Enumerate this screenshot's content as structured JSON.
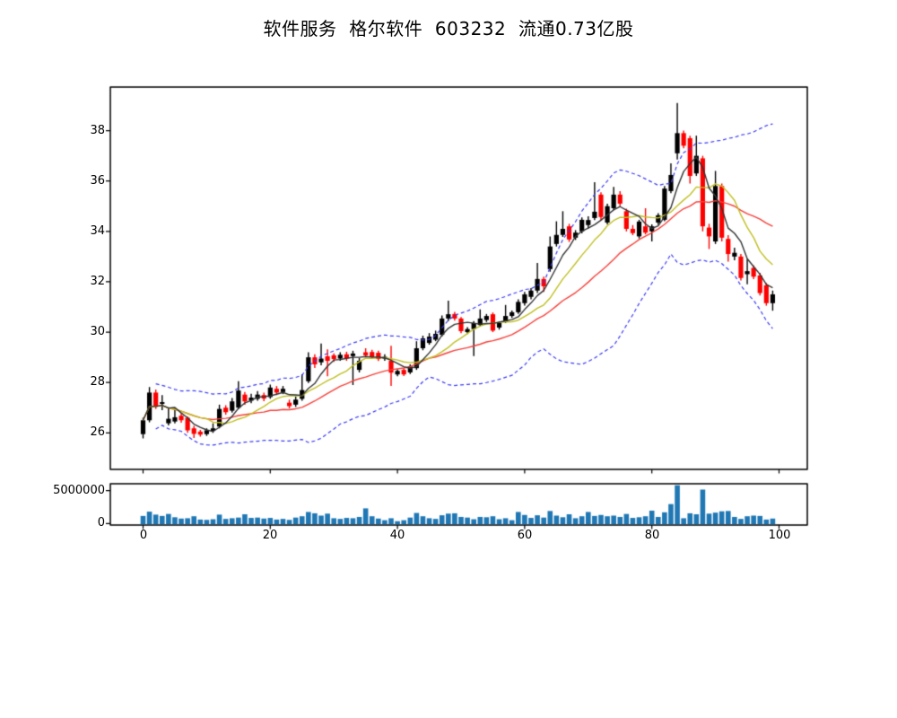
{
  "title": "软件服务  格尔软件  603232  流通0.73亿股",
  "stock": {
    "sector": "软件服务",
    "name": "格尔软件",
    "code": "603232",
    "float_shares": "流通0.73亿股"
  },
  "chart_data": {
    "type": "candlestick+volume",
    "title": "软件服务  格尔软件  603232  流通0.73亿股",
    "x_range": [
      0,
      99
    ],
    "axes": {
      "price": {
        "ylim": [
          24.55,
          39.73
        ],
        "ticks": [
          "38",
          "36",
          "34",
          "32",
          "30",
          "28",
          "26"
        ],
        "tick_values": [
          38,
          36,
          34,
          32,
          30,
          28,
          26
        ]
      },
      "volume": {
        "ticks": [
          "5000000",
          "0"
        ],
        "tick_values": [
          5000000,
          0
        ]
      },
      "x": {
        "ticks": [
          "0",
          "20",
          "40",
          "60",
          "80",
          "100"
        ],
        "tick_values": [
          0,
          20,
          40,
          60,
          80,
          100
        ]
      }
    },
    "overlays": {
      "ma": [
        {
          "period": 5,
          "color": "#333333"
        },
        {
          "period": 10,
          "color": "#bfbf22"
        },
        {
          "period": 20,
          "color": "#f4403a"
        }
      ],
      "bollinger": {
        "period": 20,
        "mult": 2,
        "color": "#3a3af2",
        "style": "dashed"
      }
    },
    "colors": {
      "up": "#000000",
      "down": "#fd0000",
      "volume_bar": "#1f77b4",
      "frame": "#000000"
    },
    "candles": [
      [
        25.95,
        26.6,
        25.78,
        26.5
      ],
      [
        26.5,
        27.82,
        26.42,
        27.6
      ],
      [
        27.6,
        27.72,
        26.95,
        27.05
      ],
      [
        27.15,
        27.5,
        26.9,
        27.22
      ],
      [
        26.38,
        27.0,
        26.3,
        26.56
      ],
      [
        26.45,
        26.96,
        26.38,
        26.62
      ],
      [
        26.68,
        26.78,
        26.4,
        26.5
      ],
      [
        26.6,
        26.65,
        26.0,
        26.1
      ],
      [
        26.18,
        26.28,
        25.8,
        25.96
      ],
      [
        26.05,
        26.12,
        25.85,
        25.93
      ],
      [
        25.95,
        26.18,
        25.88,
        26.1
      ],
      [
        26.08,
        26.38,
        26.0,
        26.18
      ],
      [
        26.25,
        27.12,
        26.18,
        26.95
      ],
      [
        27.0,
        27.1,
        26.72,
        26.82
      ],
      [
        26.88,
        27.38,
        26.8,
        27.25
      ],
      [
        27.0,
        28.05,
        26.95,
        27.68
      ],
      [
        27.52,
        27.62,
        27.12,
        27.25
      ],
      [
        27.28,
        27.55,
        27.18,
        27.4
      ],
      [
        27.35,
        27.66,
        27.28,
        27.52
      ],
      [
        27.5,
        27.6,
        27.26,
        27.36
      ],
      [
        27.42,
        27.92,
        27.36,
        27.8
      ],
      [
        27.75,
        27.86,
        27.5,
        27.6
      ],
      [
        27.62,
        27.86,
        27.54,
        27.75
      ],
      [
        27.2,
        27.32,
        26.97,
        27.06
      ],
      [
        27.12,
        27.44,
        27.03,
        27.32
      ],
      [
        27.35,
        28.33,
        27.28,
        27.7
      ],
      [
        28.05,
        29.2,
        27.98,
        29.0
      ],
      [
        29.0,
        29.12,
        28.58,
        28.72
      ],
      [
        28.8,
        29.55,
        28.68,
        28.95
      ],
      [
        29.04,
        29.32,
        28.25,
        28.86
      ],
      [
        29.08,
        29.16,
        28.82,
        28.93
      ],
      [
        28.95,
        29.2,
        28.86,
        29.1
      ],
      [
        29.12,
        29.22,
        28.86,
        28.96
      ],
      [
        29.05,
        29.26,
        27.9,
        29.15
      ],
      [
        28.5,
        28.97,
        28.4,
        28.86
      ],
      [
        29.2,
        29.36,
        29.0,
        29.08
      ],
      [
        29.21,
        29.3,
        28.93,
        29.0
      ],
      [
        29.18,
        29.26,
        28.85,
        28.93
      ],
      [
        28.95,
        29.12,
        28.86,
        29.02
      ],
      [
        28.86,
        29.46,
        27.86,
        28.39
      ],
      [
        28.32,
        28.52,
        28.25,
        28.46
      ],
      [
        28.5,
        28.56,
        28.26,
        28.32
      ],
      [
        28.4,
        28.72,
        28.34,
        28.64
      ],
      [
        28.57,
        29.64,
        28.5,
        29.36
      ],
      [
        29.36,
        29.86,
        29.28,
        29.75
      ],
      [
        29.57,
        29.96,
        29.5,
        29.82
      ],
      [
        29.7,
        30.06,
        29.64,
        29.93
      ],
      [
        29.89,
        30.66,
        29.82,
        30.54
      ],
      [
        30.54,
        31.25,
        30.44,
        30.71
      ],
      [
        30.72,
        30.8,
        30.46,
        30.54
      ],
      [
        30.54,
        30.6,
        29.96,
        30.04
      ],
      [
        30.0,
        30.2,
        29.92,
        30.12
      ],
      [
        30.12,
        30.44,
        29.05,
        30.36
      ],
      [
        30.28,
        30.9,
        30.22,
        30.54
      ],
      [
        30.48,
        30.72,
        30.4,
        30.64
      ],
      [
        30.71,
        30.78,
        30.0,
        30.06
      ],
      [
        30.18,
        30.42,
        30.1,
        30.36
      ],
      [
        30.43,
        31.08,
        30.36,
        30.64
      ],
      [
        30.64,
        30.86,
        30.56,
        30.79
      ],
      [
        30.79,
        31.3,
        30.72,
        31.2
      ],
      [
        31.15,
        31.6,
        31.05,
        31.5
      ],
      [
        31.4,
        31.75,
        31.3,
        31.65
      ],
      [
        31.65,
        32.75,
        31.55,
        32.11
      ],
      [
        32.11,
        32.2,
        31.6,
        31.82
      ],
      [
        32.5,
        33.8,
        32.4,
        33.4
      ],
      [
        33.5,
        34.4,
        33.4,
        33.86
      ],
      [
        33.86,
        34.8,
        33.78,
        34.1
      ],
      [
        34.2,
        34.3,
        33.58,
        33.68
      ],
      [
        33.75,
        34.05,
        33.66,
        33.95
      ],
      [
        34.0,
        34.55,
        33.92,
        34.46
      ],
      [
        34.25,
        34.6,
        34.12,
        34.45
      ],
      [
        34.53,
        35.95,
        34.45,
        34.78
      ],
      [
        35.46,
        35.55,
        34.45,
        34.57
      ],
      [
        34.35,
        35.1,
        34.28,
        35.0
      ],
      [
        34.92,
        35.77,
        34.85,
        35.46
      ],
      [
        35.46,
        35.6,
        35.0,
        35.1
      ],
      [
        34.8,
        34.9,
        34.0,
        34.1
      ],
      [
        34.1,
        34.25,
        33.85,
        33.93
      ],
      [
        33.8,
        34.46,
        33.72,
        34.39
      ],
      [
        34.2,
        34.92,
        33.88,
        33.95
      ],
      [
        34.0,
        34.28,
        33.6,
        34.2
      ],
      [
        34.35,
        34.72,
        34.26,
        34.64
      ],
      [
        34.46,
        35.8,
        34.4,
        35.7
      ],
      [
        35.6,
        36.7,
        35.52,
        36.24
      ],
      [
        37.1,
        39.1,
        36.85,
        37.9
      ],
      [
        37.9,
        38.0,
        37.3,
        37.4
      ],
      [
        37.7,
        37.8,
        35.9,
        36.2
      ],
      [
        36.3,
        37.8,
        36.2,
        37.0
      ],
      [
        36.9,
        37.0,
        34.0,
        34.2
      ],
      [
        34.15,
        34.3,
        33.3,
        33.8
      ],
      [
        33.6,
        36.4,
        33.5,
        35.8
      ],
      [
        35.8,
        35.9,
        33.6,
        33.75
      ],
      [
        33.7,
        33.85,
        32.8,
        33.1
      ],
      [
        33.0,
        33.35,
        32.85,
        33.15
      ],
      [
        33.0,
        33.1,
        32.05,
        32.15
      ],
      [
        32.3,
        32.9,
        31.9,
        32.42
      ],
      [
        32.55,
        32.65,
        32.1,
        32.2
      ],
      [
        32.25,
        32.35,
        31.45,
        31.55
      ],
      [
        31.86,
        31.95,
        31.05,
        31.15
      ],
      [
        31.15,
        31.65,
        30.85,
        31.5
      ]
    ],
    "volumes": [
      1150000,
      1800000,
      1350000,
      1150000,
      1450000,
      950000,
      750000,
      800000,
      1100000,
      600000,
      550000,
      650000,
      1350000,
      700000,
      800000,
      900000,
      1400000,
      850000,
      900000,
      750000,
      850000,
      600000,
      700000,
      550000,
      900000,
      1100000,
      1750000,
      1550000,
      1200000,
      1500000,
      800000,
      700000,
      850000,
      800000,
      1000000,
      2300000,
      1100000,
      750000,
      500000,
      800000,
      350000,
      500000,
      900000,
      1600000,
      1100000,
      800000,
      700000,
      1250000,
      1500000,
      1550000,
      1000000,
      900000,
      650000,
      1000000,
      950000,
      1100000,
      650000,
      800000,
      500000,
      1750000,
      1300000,
      850000,
      1250000,
      900000,
      1900000,
      1200000,
      950000,
      1400000,
      800000,
      1100000,
      1750000,
      1150000,
      1300000,
      1100000,
      1200000,
      1000000,
      1450000,
      850000,
      950000,
      1100000,
      1950000,
      1000000,
      1700000,
      2950000,
      5800000,
      800000,
      1550000,
      1400000,
      5150000,
      1500000,
      1650000,
      1850000,
      1900000,
      1000000,
      700000,
      1100000,
      1200000,
      1150000,
      600000,
      750000
    ]
  }
}
